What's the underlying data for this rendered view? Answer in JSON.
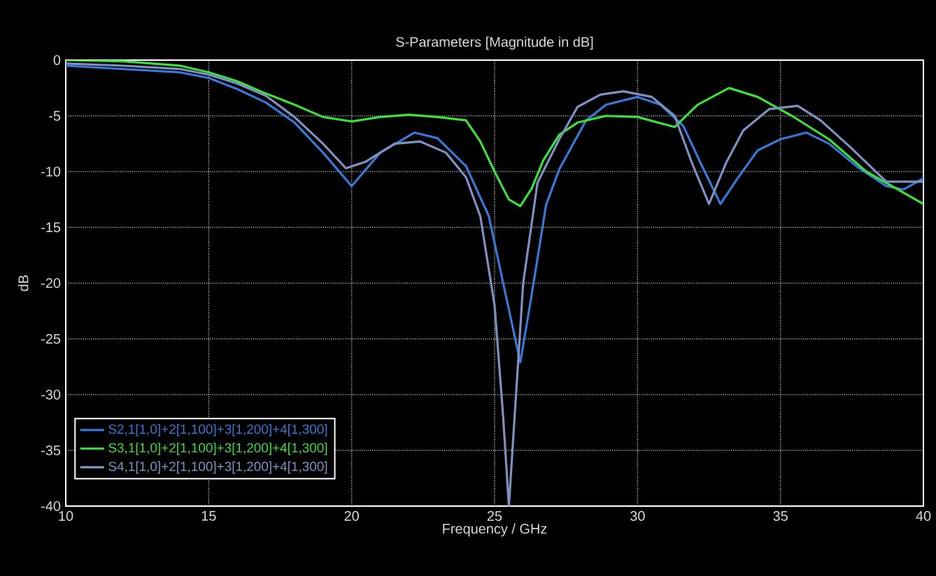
{
  "chart_data": {
    "type": "line",
    "title": "S-Parameters [Magnitude in dB]",
    "xlabel": "Frequency / GHz",
    "ylabel": "dB",
    "xlim": [
      10,
      40
    ],
    "ylim": [
      -40,
      0
    ],
    "xticks": [
      10,
      15,
      20,
      25,
      30,
      35,
      40
    ],
    "yticks": [
      0,
      -5,
      -10,
      -15,
      -20,
      -25,
      -30,
      -35,
      -40
    ],
    "grid": true,
    "legend": "bottom left",
    "marker": "none",
    "line_style": "solid",
    "series": [
      {
        "name": "S2,1[1,0]+2[1,100]+3[1,200]+4[1,300]",
        "color": "#3a78d8",
        "x": [
          10,
          12,
          14,
          15,
          16,
          17,
          18,
          19,
          20,
          21,
          22.2,
          23,
          24,
          24.8,
          25.3,
          25.9,
          26.3,
          26.8,
          27.26,
          28.2,
          28.9,
          30,
          30.8,
          31.6,
          32.2,
          32.9,
          33.5,
          34.2,
          35,
          35.9,
          36.7,
          37.7,
          38.7,
          39.3,
          40
        ],
        "values": [
          -0.5,
          -0.8,
          -1.1,
          -1.6,
          -2.6,
          -3.8,
          -5.6,
          -8.3,
          -11.3,
          -8.3,
          -6.5,
          -7.0,
          -9.5,
          -14,
          -20,
          -27.1,
          -21,
          -13,
          -9.8,
          -5.4,
          -4.0,
          -3.3,
          -4.0,
          -5.9,
          -9.2,
          -12.9,
          -10.6,
          -8.1,
          -7.1,
          -6.5,
          -7.5,
          -9.6,
          -11.3,
          -11.6,
          -10.6
        ]
      },
      {
        "name": "S3,1[1,0]+2[1,100]+3[1,200]+4[1,300]",
        "color": "#3ce03c",
        "x": [
          10,
          12,
          14,
          15,
          16,
          17,
          18,
          19,
          20,
          21,
          22,
          23,
          24,
          24.5,
          25,
          25.5,
          25.9,
          26.3,
          26.7,
          27.26,
          27.9,
          28.9,
          30,
          31.3,
          32.1,
          33.2,
          34.2,
          35.4,
          36.7,
          38,
          40
        ],
        "values": [
          0,
          -0.1,
          -0.5,
          -1.1,
          -1.9,
          -3.0,
          -4.0,
          -5.1,
          -5.5,
          -5.1,
          -4.9,
          -5.1,
          -5.4,
          -7.3,
          -10,
          -12.5,
          -13.1,
          -11.5,
          -9,
          -6.7,
          -5.6,
          -5.0,
          -5.1,
          -6.0,
          -4.0,
          -2.5,
          -3.3,
          -5.0,
          -7.1,
          -10.0,
          -12.9
        ]
      },
      {
        "name": "S4,1[1,0]+2[1,100]+3[1,200]+4[1,300]",
        "color": "#8090c0",
        "x": [
          10,
          12,
          14,
          15,
          16,
          17,
          18,
          19,
          19.8,
          20.5,
          21.5,
          22.4,
          23.3,
          24,
          24.5,
          25,
          25.3,
          25.5,
          25.7,
          26,
          26.5,
          27.26,
          27.9,
          28.7,
          29.5,
          30.5,
          31.3,
          31.9,
          32.5,
          33.1,
          33.7,
          34.6,
          35.6,
          36.4,
          37.4,
          38.7,
          40
        ],
        "values": [
          -0.3,
          -0.5,
          -0.8,
          -1.3,
          -2.1,
          -3.2,
          -5.1,
          -7.5,
          -9.7,
          -9.1,
          -7.5,
          -7.3,
          -8.3,
          -10.5,
          -14,
          -22,
          -32,
          -40,
          -32,
          -20,
          -11,
          -7.1,
          -4.2,
          -3.1,
          -2.8,
          -3.3,
          -5.0,
          -9.2,
          -12.9,
          -9.2,
          -6.3,
          -4.4,
          -4.1,
          -5.4,
          -7.7,
          -10.9,
          -10.9
        ]
      }
    ]
  }
}
